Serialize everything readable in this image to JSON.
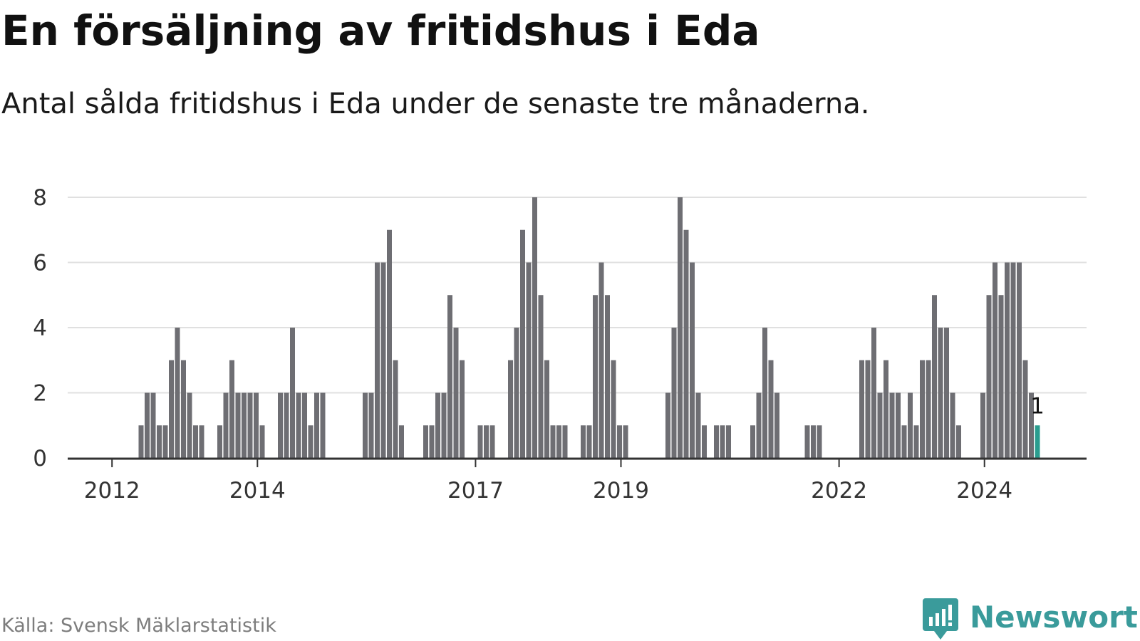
{
  "title": "En försäljning av fritidshus i Eda",
  "subtitle": "Antal sålda fritidshus i Eda under de senaste tre månaderna.",
  "source": "Källa: Svensk Mäklarstatistik",
  "brand": {
    "name": "Newsworthy",
    "icon": "newsworthy-logo-icon",
    "color": "#3a9b9b"
  },
  "chart_data": {
    "type": "bar",
    "title": "En försäljning av fritidshus i Eda",
    "subtitle": "Antal sålda fritidshus i Eda under de senaste tre månaderna.",
    "xlabel": "",
    "ylabel": "",
    "ylim": [
      0,
      8
    ],
    "y_ticks": [
      0,
      2,
      4,
      6,
      8
    ],
    "grid": true,
    "x_ticks": [
      "2012",
      "2014",
      "2017",
      "2019",
      "2022",
      "2024"
    ],
    "x_start": 2011.4,
    "x_step": 0.0833,
    "values": [
      0,
      0,
      0,
      0,
      0,
      0,
      0,
      0,
      0,
      0,
      0,
      0,
      1,
      2,
      2,
      1,
      1,
      3,
      4,
      3,
      2,
      1,
      1,
      0,
      0,
      1,
      2,
      3,
      2,
      2,
      2,
      2,
      1,
      0,
      0,
      2,
      2,
      4,
      2,
      2,
      1,
      2,
      2,
      0,
      0,
      0,
      0,
      0,
      0,
      2,
      2,
      6,
      6,
      7,
      3,
      1,
      0,
      0,
      0,
      1,
      1,
      2,
      2,
      5,
      4,
      3,
      0,
      0,
      1,
      1,
      1,
      0,
      0,
      3,
      4,
      7,
      6,
      8,
      5,
      3,
      1,
      1,
      1,
      0,
      0,
      1,
      1,
      5,
      6,
      5,
      3,
      1,
      1,
      0,
      0,
      0,
      0,
      0,
      0,
      2,
      4,
      8,
      7,
      6,
      2,
      1,
      0,
      1,
      1,
      1,
      0,
      0,
      0,
      1,
      2,
      4,
      3,
      2,
      0,
      0,
      0,
      0,
      1,
      1,
      1,
      0,
      0,
      0,
      0,
      0,
      0,
      3,
      3,
      4,
      2,
      3,
      2,
      2,
      1,
      2,
      1,
      3,
      3,
      5,
      4,
      4,
      2,
      1,
      0,
      0,
      0,
      2,
      5,
      6,
      5,
      6,
      6,
      6,
      3,
      2,
      1
    ],
    "bar_color": "#6e6e73",
    "highlight_color": "#2a9d8f",
    "highlight_label": "1",
    "axis_color": "#333333",
    "grid_color": "#e0e0e0"
  }
}
